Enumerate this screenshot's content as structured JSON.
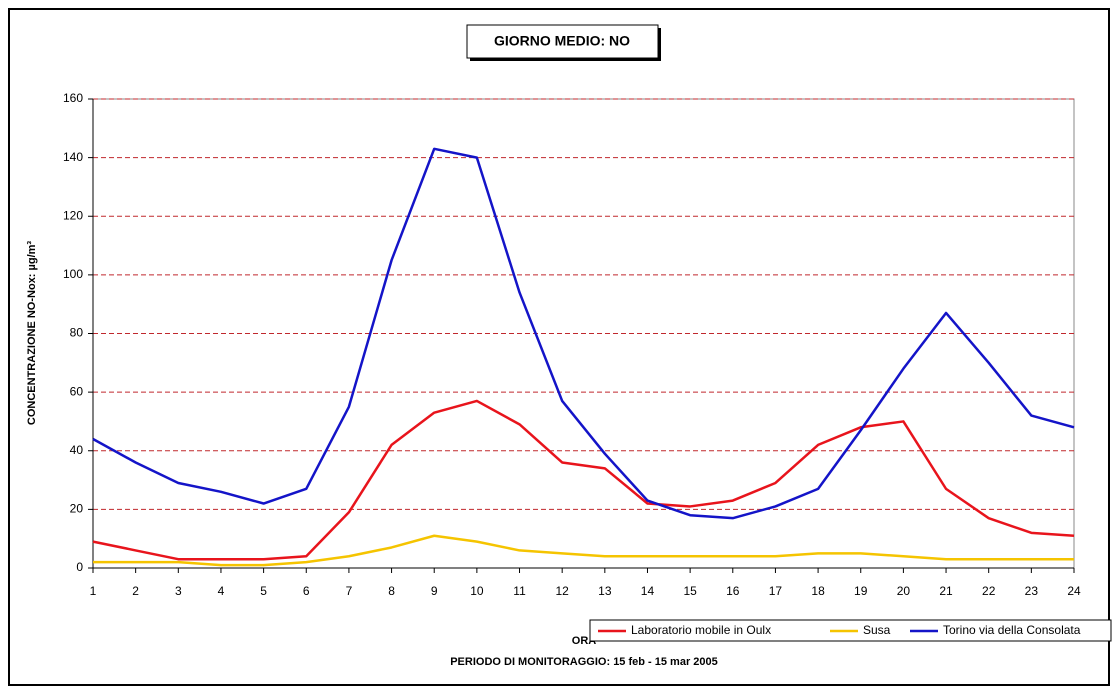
{
  "chart_data": {
    "type": "line",
    "title": "GIORNO MEDIO: NO",
    "y_label": "CONCENTRAZIONE NO-Nox: µg/m³",
    "x_label": "ORA",
    "subtitle": "PERIODO DI MONITORAGGIO: 15 feb - 15 mar 2005",
    "x": [
      1,
      2,
      3,
      4,
      5,
      6,
      7,
      8,
      9,
      10,
      11,
      12,
      13,
      14,
      15,
      16,
      17,
      18,
      19,
      20,
      21,
      22,
      23,
      24
    ],
    "xlim": [
      1,
      24
    ],
    "xticks": [
      1,
      2,
      3,
      4,
      5,
      6,
      7,
      8,
      9,
      10,
      11,
      12,
      13,
      14,
      15,
      16,
      17,
      18,
      19,
      20,
      21,
      22,
      23,
      24
    ],
    "ylim": [
      0,
      160
    ],
    "yticks": [
      0,
      20,
      40,
      60,
      80,
      100,
      120,
      140,
      160
    ],
    "grid": true,
    "legend": "bottom-right",
    "series": [
      {
        "name": "Laboratorio mobile in Oulx",
        "color": "#e8141c",
        "values": [
          9,
          6,
          3,
          3,
          3,
          4,
          19,
          42,
          53,
          57,
          49,
          36,
          34,
          22,
          21,
          23,
          29,
          42,
          48,
          50,
          27,
          17,
          12,
          11
        ]
      },
      {
        "name": "Susa",
        "color": "#f5c400",
        "values": [
          2,
          2,
          2,
          1,
          1,
          2,
          4,
          7,
          11,
          9,
          6,
          5,
          4,
          4,
          4,
          4,
          4,
          5,
          5,
          4,
          3,
          3,
          3,
          3
        ]
      },
      {
        "name": "Torino via della Consolata",
        "color": "#1414c8",
        "values": [
          44,
          36,
          29,
          26,
          22,
          27,
          55,
          105,
          143,
          140,
          94,
          57,
          39,
          23,
          18,
          17,
          21,
          27,
          47,
          68,
          87,
          70,
          52,
          48
        ]
      }
    ]
  }
}
